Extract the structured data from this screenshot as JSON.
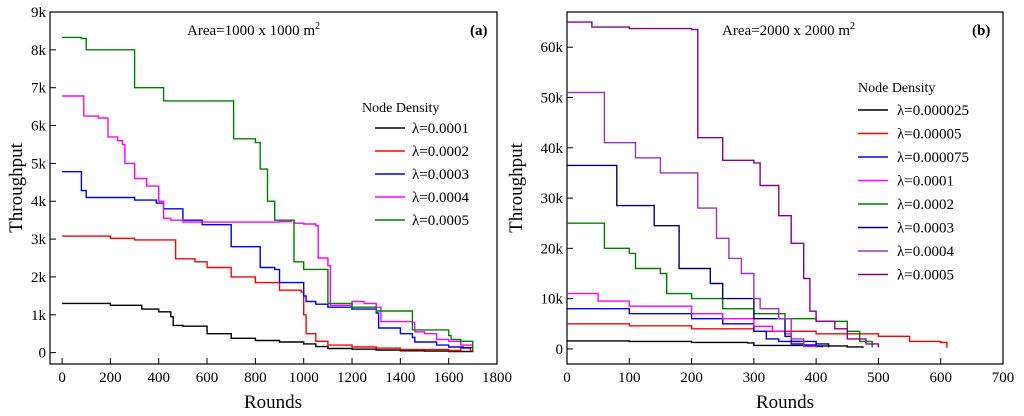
{
  "chart_data": [
    {
      "type": "line",
      "panel_label": "(a)",
      "annotation": "Area=1000 x 1000 m",
      "annotation_sup": "2",
      "xlabel": "Rounds",
      "ylabel": "Throughput",
      "xlim": [
        -50,
        1800
      ],
      "ylim": [
        -300,
        9000
      ],
      "xticks": [
        0,
        200,
        400,
        600,
        800,
        1000,
        1200,
        1400,
        1600,
        1800
      ],
      "yticks": [
        0,
        1000,
        2000,
        3000,
        4000,
        5000,
        6000,
        7000,
        8000,
        9000
      ],
      "ytick_labels": [
        "0",
        "1k",
        "2k",
        "3k",
        "4k",
        "5k",
        "6k",
        "7k",
        "8k",
        "9k"
      ],
      "legend_title": "Node Density",
      "legend_position": "center-right",
      "series": [
        {
          "name": "λ=0.0001",
          "color": "#000000",
          "points": [
            [
              0,
              1300
            ],
            [
              150,
              1300
            ],
            [
              200,
              1250
            ],
            [
              300,
              1250
            ],
            [
              330,
              1150
            ],
            [
              400,
              1080
            ],
            [
              450,
              950
            ],
            [
              460,
              720
            ],
            [
              500,
              700
            ],
            [
              600,
              500
            ],
            [
              700,
              380
            ],
            [
              800,
              320
            ],
            [
              900,
              280
            ],
            [
              1000,
              230
            ],
            [
              1050,
              160
            ],
            [
              1100,
              110
            ],
            [
              1200,
              90
            ],
            [
              1300,
              70
            ],
            [
              1400,
              50
            ],
            [
              1500,
              40
            ],
            [
              1600,
              30
            ],
            [
              1700,
              20
            ]
          ]
        },
        {
          "name": "λ=0.0002",
          "color": "#ff0000",
          "points": [
            [
              0,
              3080
            ],
            [
              200,
              3020
            ],
            [
              300,
              2980
            ],
            [
              460,
              2980
            ],
            [
              470,
              2480
            ],
            [
              550,
              2400
            ],
            [
              600,
              2250
            ],
            [
              700,
              2000
            ],
            [
              800,
              1850
            ],
            [
              900,
              1650
            ],
            [
              990,
              1600
            ],
            [
              1000,
              1000
            ],
            [
              1010,
              500
            ],
            [
              1050,
              300
            ],
            [
              1100,
              200
            ],
            [
              1200,
              150
            ],
            [
              1300,
              120
            ],
            [
              1400,
              80
            ],
            [
              1500,
              80
            ],
            [
              1600,
              60
            ],
            [
              1650,
              120
            ],
            [
              1690,
              50
            ],
            [
              1700,
              30
            ]
          ]
        },
        {
          "name": "λ=0.0003",
          "color": "#0000ff",
          "points": [
            [
              0,
              4780
            ],
            [
              60,
              4780
            ],
            [
              80,
              4280
            ],
            [
              100,
              4100
            ],
            [
              300,
              4030
            ],
            [
              390,
              3950
            ],
            [
              420,
              3800
            ],
            [
              500,
              3500
            ],
            [
              580,
              3380
            ],
            [
              680,
              3380
            ],
            [
              700,
              2800
            ],
            [
              800,
              2800
            ],
            [
              820,
              2250
            ],
            [
              880,
              2200
            ],
            [
              900,
              1850
            ],
            [
              1000,
              1500
            ],
            [
              1010,
              1350
            ],
            [
              1050,
              1280
            ],
            [
              1100,
              1200
            ],
            [
              1200,
              1150
            ],
            [
              1300,
              1050
            ],
            [
              1310,
              650
            ],
            [
              1400,
              500
            ],
            [
              1450,
              400
            ],
            [
              1460,
              280
            ],
            [
              1550,
              200
            ],
            [
              1600,
              150
            ],
            [
              1660,
              130
            ],
            [
              1700,
              50
            ]
          ]
        },
        {
          "name": "λ=0.0004",
          "color": "#ff00ff",
          "points": [
            [
              0,
              6780
            ],
            [
              80,
              6780
            ],
            [
              90,
              6250
            ],
            [
              150,
              6200
            ],
            [
              180,
              6200
            ],
            [
              190,
              5700
            ],
            [
              230,
              5600
            ],
            [
              250,
              5500
            ],
            [
              260,
              5000
            ],
            [
              300,
              4600
            ],
            [
              350,
              4400
            ],
            [
              400,
              4000
            ],
            [
              420,
              3550
            ],
            [
              450,
              3500
            ],
            [
              500,
              3450
            ],
            [
              700,
              3450
            ],
            [
              900,
              3460
            ],
            [
              950,
              3500
            ],
            [
              960,
              3420
            ],
            [
              1000,
              3400
            ],
            [
              1050,
              3350
            ],
            [
              1060,
              2500
            ],
            [
              1100,
              2300
            ],
            [
              1110,
              1250
            ],
            [
              1200,
              1350
            ],
            [
              1250,
              1300
            ],
            [
              1300,
              1200
            ],
            [
              1320,
              820
            ],
            [
              1450,
              800
            ],
            [
              1460,
              550
            ],
            [
              1500,
              500
            ],
            [
              1550,
              350
            ],
            [
              1600,
              300
            ],
            [
              1650,
              200
            ],
            [
              1700,
              50
            ]
          ]
        },
        {
          "name": "λ=0.0005",
          "color": "#008000",
          "points": [
            [
              0,
              8330
            ],
            [
              80,
              8300
            ],
            [
              100,
              8000
            ],
            [
              290,
              8000
            ],
            [
              300,
              7000
            ],
            [
              400,
              7000
            ],
            [
              420,
              6650
            ],
            [
              500,
              6650
            ],
            [
              700,
              6650
            ],
            [
              710,
              5650
            ],
            [
              800,
              5550
            ],
            [
              820,
              4850
            ],
            [
              850,
              4000
            ],
            [
              880,
              3500
            ],
            [
              950,
              3500
            ],
            [
              960,
              2400
            ],
            [
              1000,
              2200
            ],
            [
              1050,
              2200
            ],
            [
              1100,
              1300
            ],
            [
              1200,
              1200
            ],
            [
              1280,
              1200
            ],
            [
              1300,
              1100
            ],
            [
              1400,
              1100
            ],
            [
              1450,
              600
            ],
            [
              1600,
              450
            ],
            [
              1610,
              350
            ],
            [
              1650,
              300
            ],
            [
              1700,
              50
            ]
          ]
        }
      ]
    },
    {
      "type": "line",
      "panel_label": "(b)",
      "annotation": "Area=2000 x 2000 m",
      "annotation_sup": "2",
      "xlabel": "Rounds",
      "ylabel": "Throughput",
      "xlim": [
        0,
        700
      ],
      "ylim": [
        -3000,
        67000
      ],
      "xticks": [
        0,
        100,
        200,
        300,
        400,
        500,
        600,
        700
      ],
      "yticks": [
        0,
        10000,
        20000,
        30000,
        40000,
        50000,
        60000
      ],
      "ytick_labels": [
        "0",
        "10k",
        "20k",
        "30k",
        "40k",
        "50k",
        "60k"
      ],
      "legend_title": "Node Density",
      "legend_position": "right",
      "series": [
        {
          "name": "λ=0.000025",
          "color": "#000000",
          "points": [
            [
              0,
              1600
            ],
            [
              100,
              1500
            ],
            [
              200,
              1300
            ],
            [
              290,
              1200
            ],
            [
              300,
              700
            ],
            [
              400,
              600
            ],
            [
              450,
              400
            ],
            [
              475,
              200
            ]
          ]
        },
        {
          "name": "λ=0.00005",
          "color": "#ff0000",
          "points": [
            [
              0,
              5000
            ],
            [
              100,
              4600
            ],
            [
              200,
              4000
            ],
            [
              300,
              3500
            ],
            [
              400,
              3000
            ],
            [
              500,
              2500
            ],
            [
              550,
              1500
            ],
            [
              600,
              1300
            ],
            [
              610,
              200
            ]
          ]
        },
        {
          "name": "λ=0.000075",
          "color": "#0000ff",
          "points": [
            [
              0,
              8000
            ],
            [
              100,
              7000
            ],
            [
              200,
              6000
            ],
            [
              250,
              5000
            ],
            [
              300,
              3500
            ],
            [
              320,
              2000
            ],
            [
              340,
              1500
            ],
            [
              360,
              1000
            ],
            [
              380,
              800
            ],
            [
              400,
              500
            ],
            [
              410,
              300
            ]
          ]
        },
        {
          "name": "λ=0.0001",
          "color": "#ff00ff",
          "points": [
            [
              0,
              11000
            ],
            [
              50,
              9500
            ],
            [
              100,
              8500
            ],
            [
              200,
              7000
            ],
            [
              250,
              6000
            ],
            [
              300,
              4500
            ],
            [
              330,
              3500
            ],
            [
              350,
              3000
            ],
            [
              360,
              1500
            ],
            [
              380,
              500
            ],
            [
              400,
              300
            ]
          ]
        },
        {
          "name": "λ=0.0002",
          "color": "#008000",
          "points": [
            [
              0,
              25000
            ],
            [
              50,
              25000
            ],
            [
              60,
              20000
            ],
            [
              100,
              19000
            ],
            [
              110,
              16000
            ],
            [
              150,
              15000
            ],
            [
              160,
              11000
            ],
            [
              200,
              10000
            ],
            [
              250,
              8000
            ],
            [
              300,
              7000
            ],
            [
              350,
              6000
            ],
            [
              400,
              5500
            ],
            [
              450,
              3500
            ],
            [
              470,
              1500
            ],
            [
              490,
              300
            ]
          ]
        },
        {
          "name": "λ=0.0003",
          "color": "#000080",
          "points": [
            [
              0,
              36500
            ],
            [
              70,
              36500
            ],
            [
              80,
              28500
            ],
            [
              130,
              28500
            ],
            [
              140,
              24500
            ],
            [
              170,
              24500
            ],
            [
              180,
              16000
            ],
            [
              230,
              13000
            ],
            [
              250,
              10000
            ],
            [
              300,
              6000
            ],
            [
              350,
              2500
            ],
            [
              360,
              1500
            ],
            [
              400,
              1000
            ],
            [
              420,
              300
            ]
          ]
        },
        {
          "name": "λ=0.0004",
          "color": "#9932cc",
          "points": [
            [
              0,
              51000
            ],
            [
              50,
              51000
            ],
            [
              60,
              41000
            ],
            [
              100,
              41000
            ],
            [
              110,
              38000
            ],
            [
              140,
              38000
            ],
            [
              150,
              35000
            ],
            [
              200,
              35000
            ],
            [
              210,
              28000
            ],
            [
              230,
              28000
            ],
            [
              240,
              22000
            ],
            [
              260,
              18000
            ],
            [
              280,
              15000
            ],
            [
              300,
              10000
            ],
            [
              310,
              8000
            ],
            [
              340,
              6000
            ],
            [
              360,
              2000
            ],
            [
              380,
              500
            ],
            [
              400,
              300
            ]
          ]
        },
        {
          "name": "λ=0.0005",
          "color": "#8b008b",
          "points": [
            [
              0,
              65000
            ],
            [
              40,
              64000
            ],
            [
              100,
              63700
            ],
            [
              200,
              63500
            ],
            [
              210,
              42000
            ],
            [
              240,
              42000
            ],
            [
              250,
              37500
            ],
            [
              300,
              37000
            ],
            [
              310,
              32500
            ],
            [
              330,
              32500
            ],
            [
              340,
              26500
            ],
            [
              360,
              21000
            ],
            [
              380,
              14000
            ],
            [
              390,
              7500
            ],
            [
              400,
              5500
            ],
            [
              430,
              4000
            ],
            [
              450,
              2000
            ],
            [
              480,
              1000
            ],
            [
              500,
              300
            ]
          ]
        }
      ]
    }
  ]
}
